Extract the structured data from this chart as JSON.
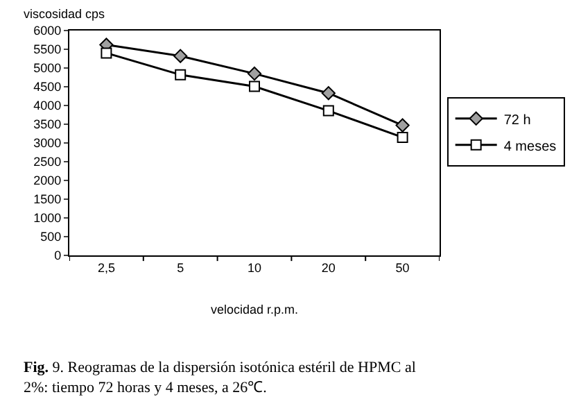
{
  "chart_data": {
    "type": "line",
    "xlabel": "velocidad r.p.m.",
    "ylabel": "viscosidad cps",
    "categories": [
      "2,5",
      "5",
      "10",
      "20",
      "50"
    ],
    "series": [
      {
        "name": "72 h",
        "color": "#000000",
        "marker": "diamond",
        "values": [
          5620,
          5320,
          4850,
          4330,
          3470
        ]
      },
      {
        "name": "4 meses",
        "color": "#000000",
        "marker": "square",
        "values": [
          5400,
          4820,
          4510,
          3860,
          3150
        ]
      }
    ],
    "ylim": [
      0,
      6000
    ],
    "yticks": [
      0,
      500,
      1000,
      1500,
      2000,
      2500,
      3000,
      3500,
      4000,
      4500,
      5000,
      5500,
      6000
    ],
    "grid": false,
    "legend": "right",
    "line_style": "solid",
    "annotations": [
      "Fig. 9. Reogramas de la dispersión isotónica estéril de HPMC al 2%: tiempo 72 horas y 4 meses, a 26℃."
    ]
  }
}
